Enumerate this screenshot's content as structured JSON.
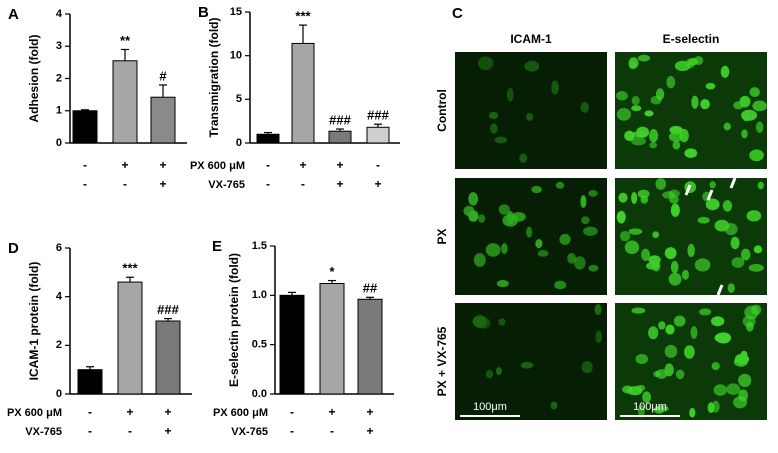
{
  "chart_data": [
    {
      "type": "bar",
      "panel": "A",
      "y_label": "Adhesion (fold)",
      "values": [
        1.0,
        2.55,
        1.42
      ],
      "errors": [
        0.03,
        0.35,
        0.38
      ],
      "colors": [
        "#000000",
        "#a6a6a6",
        "#8a8a8a"
      ],
      "annotations": [
        null,
        "**",
        "#"
      ],
      "ylim": [
        0,
        4
      ],
      "yticks": [
        0,
        1,
        2,
        3,
        4
      ],
      "rows": [
        {
          "signs": [
            "-",
            "+",
            "+"
          ]
        },
        {
          "signs": [
            "-",
            "-",
            "+"
          ]
        }
      ]
    },
    {
      "type": "bar",
      "panel": "B",
      "y_label": "Transmigration (fold)",
      "values": [
        1.0,
        11.4,
        1.35,
        1.8
      ],
      "errors": [
        0.2,
        2.1,
        0.25,
        0.35
      ],
      "colors": [
        "#000000",
        "#a6a6a6",
        "#7a7a7a",
        "#cfcfcf"
      ],
      "annotations": [
        null,
        "***",
        "###",
        "###"
      ],
      "ylim": [
        0,
        15
      ],
      "yticks": [
        0,
        5,
        10,
        15
      ],
      "rows": [
        {
          "label": "PX 600 μM",
          "signs": [
            "-",
            "+",
            "+",
            "-"
          ]
        },
        {
          "label": "VX-765",
          "signs": [
            "-",
            "-",
            "+",
            "+"
          ]
        }
      ]
    },
    {
      "type": "bar",
      "panel": "D",
      "y_label": "ICAM-1 protein (fold)",
      "values": [
        1.0,
        4.6,
        3.0
      ],
      "errors": [
        0.12,
        0.2,
        0.1
      ],
      "colors": [
        "#000000",
        "#a6a6a6",
        "#7a7a7a"
      ],
      "annotations": [
        null,
        "***",
        "###"
      ],
      "ylim": [
        0,
        6
      ],
      "yticks": [
        0,
        2,
        4,
        6
      ],
      "rows": [
        {
          "label": "PX 600 μM",
          "signs": [
            "-",
            "+",
            "+"
          ]
        },
        {
          "label": "VX-765",
          "signs": [
            "-",
            "-",
            "+"
          ]
        }
      ]
    },
    {
      "type": "bar",
      "panel": "E",
      "y_label": "E-selectin protein (fold)",
      "values": [
        1.0,
        1.12,
        0.96
      ],
      "errors": [
        0.03,
        0.03,
        0.02
      ],
      "colors": [
        "#000000",
        "#a6a6a6",
        "#7a7a7a"
      ],
      "annotations": [
        null,
        "*",
        "##"
      ],
      "ylim": [
        0,
        1.5
      ],
      "yticks": [
        {
          "value": 0,
          "label": "0.0"
        },
        0.5,
        {
          "value": 1,
          "label": "1.0"
        },
        1.5
      ],
      "rows": [
        {
          "label": "PX 600 μM",
          "signs": [
            "-",
            "+",
            "+"
          ]
        },
        {
          "label": "VX-765",
          "signs": [
            "-",
            "-",
            "+"
          ]
        }
      ]
    }
  ],
  "panel_c": {
    "panel": "C",
    "columns": [
      "ICAM-1",
      "E-selectin"
    ],
    "rows": [
      "Control",
      "PX",
      "PX + VX-765"
    ],
    "scale_bar": "100μm"
  }
}
